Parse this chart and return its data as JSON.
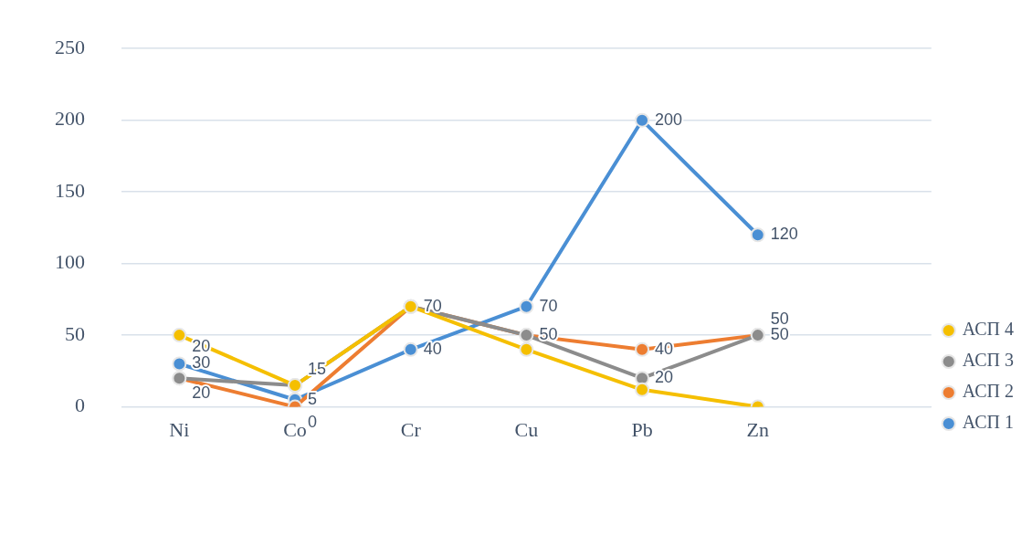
{
  "chart_data": {
    "type": "line",
    "categories": [
      "Ni",
      "Co",
      "Cr",
      "Cu",
      "Pb",
      "Zn",
      null
    ],
    "series": [
      {
        "name": "АСП 1",
        "color": "#4a8fd4",
        "values": [
          30,
          5,
          40,
          70,
          200,
          120,
          null
        ],
        "value_labels": [
          "30",
          "5",
          "40",
          "70",
          "200",
          "120",
          null
        ]
      },
      {
        "name": "АСП 2",
        "color": "#ed7d31",
        "values": [
          20,
          0,
          70,
          50,
          40,
          50,
          null
        ],
        "value_labels": [
          "20",
          "0",
          "70",
          "50",
          "40",
          "50",
          null
        ]
      },
      {
        "name": "АСП 3",
        "color": "#8c8c8c",
        "values": [
          20,
          15,
          70,
          50,
          20,
          50,
          null
        ],
        "value_labels": [
          "20",
          "15",
          null,
          null,
          "20",
          "50",
          null
        ]
      },
      {
        "name": "АСП 4",
        "color": "#f5bf00",
        "values": [
          50,
          15,
          70,
          40,
          12,
          0,
          null
        ]
      }
    ],
    "ylim": [
      0,
      250
    ],
    "yticks": [
      0,
      50,
      100,
      150,
      200,
      250
    ],
    "grid": "y",
    "legend": "right",
    "marker": "circle",
    "line_style": "solid"
  }
}
